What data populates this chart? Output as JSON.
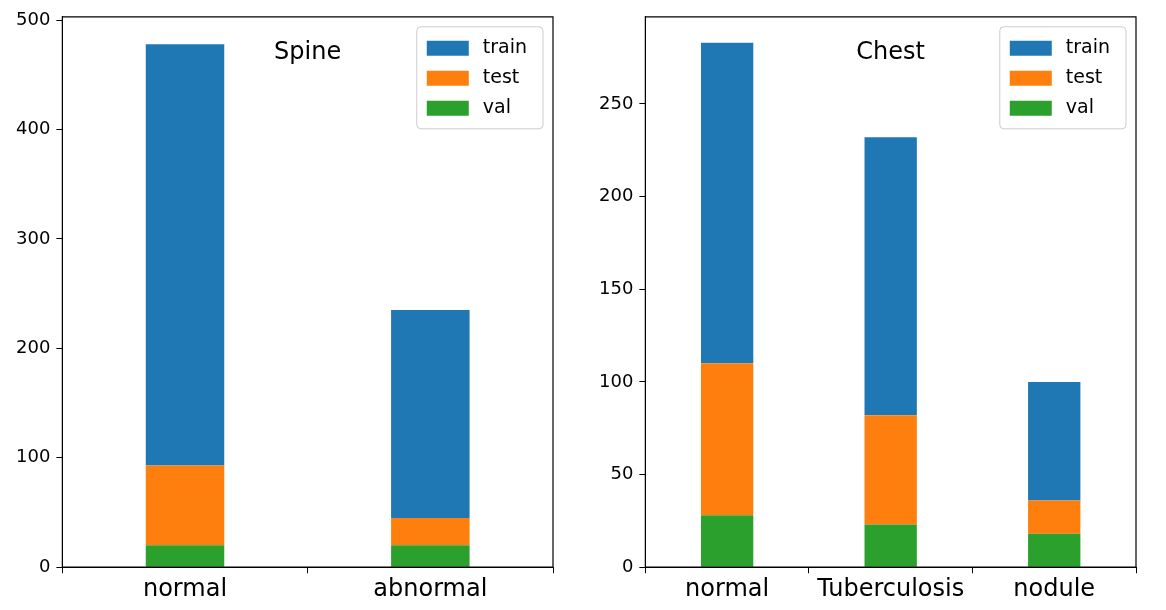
{
  "chart_data": [
    {
      "type": "bar",
      "title": "Spine",
      "categories": [
        "normal",
        "abnormal"
      ],
      "stacked": true,
      "series": [
        {
          "name": "val",
          "color": "#2ca02c",
          "values": [
            20,
            20
          ]
        },
        {
          "name": "test",
          "color": "#ff7f0e",
          "values": [
            73,
            25
          ]
        },
        {
          "name": "train",
          "color": "#1f77b4",
          "values": [
            385,
            190
          ]
        }
      ],
      "ylim": [
        0,
        503
      ],
      "yticks": [
        0,
        100,
        200,
        300,
        400,
        500
      ],
      "grid": false,
      "legend": "top right"
    },
    {
      "type": "bar",
      "title": "Chest",
      "categories": [
        "normal",
        "Tuberculosis",
        "nodule"
      ],
      "stacked": true,
      "series": [
        {
          "name": "val",
          "color": "#2ca02c",
          "values": [
            28,
            23,
            18
          ]
        },
        {
          "name": "test",
          "color": "#ff7f0e",
          "values": [
            82,
            59,
            18
          ]
        },
        {
          "name": "train",
          "color": "#1f77b4",
          "values": [
            173,
            150,
            64
          ]
        }
      ],
      "ylim": [
        0,
        297
      ],
      "yticks": [
        0,
        50,
        100,
        150,
        200,
        250
      ],
      "grid": false,
      "legend": "top right"
    }
  ]
}
